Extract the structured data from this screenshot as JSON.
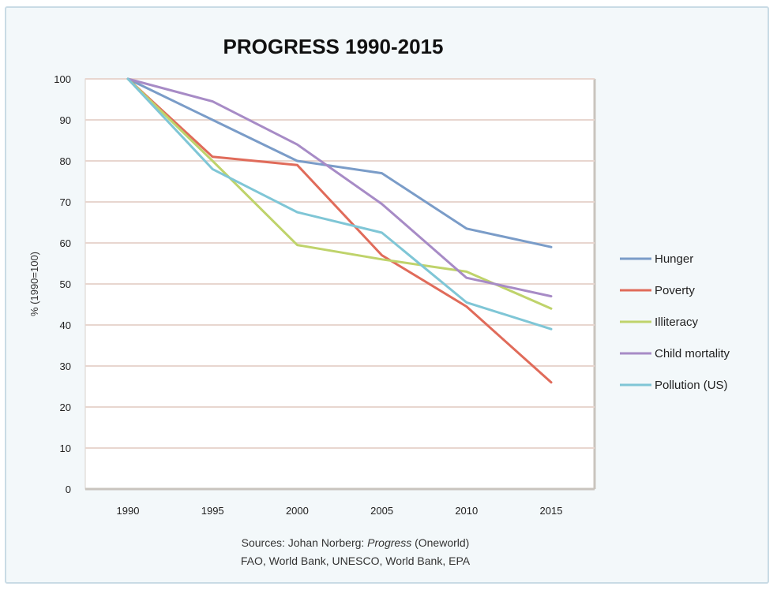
{
  "chart_data": {
    "type": "line",
    "title": "PROGRESS 1990-2015",
    "xlabel": "",
    "ylabel": "% (1990=100)",
    "ylim": [
      0,
      100
    ],
    "yticks": [
      0,
      10,
      20,
      30,
      40,
      50,
      60,
      70,
      80,
      90,
      100
    ],
    "categories": [
      "1990",
      "1995",
      "2000",
      "2005",
      "2010",
      "2015"
    ],
    "grid": true,
    "legend_position": "right",
    "series": [
      {
        "name": "Hunger",
        "color": "#7a9cc8",
        "values": [
          100,
          90,
          80,
          77,
          63.5,
          59
        ]
      },
      {
        "name": "Poverty",
        "color": "#e06b5a",
        "values": [
          100,
          81,
          79,
          57,
          44.5,
          26
        ]
      },
      {
        "name": "Illiteracy",
        "color": "#bfd36b",
        "values": [
          100,
          80,
          59.5,
          56,
          53,
          44
        ]
      },
      {
        "name": "Child mortality",
        "color": "#a78bc6",
        "values": [
          100,
          94.5,
          84,
          69.5,
          51.5,
          47
        ]
      },
      {
        "name": "Pollution (US)",
        "color": "#7fc6d6",
        "values": [
          100,
          78,
          67.5,
          62.5,
          45.5,
          39
        ]
      }
    ],
    "sources_prefix": "Sources: Johan Norberg: ",
    "sources_book": "Progress",
    "sources_suffix": " (Oneworld)",
    "sources_line2": "FAO, World Bank, UNESCO, World Bank, EPA"
  }
}
